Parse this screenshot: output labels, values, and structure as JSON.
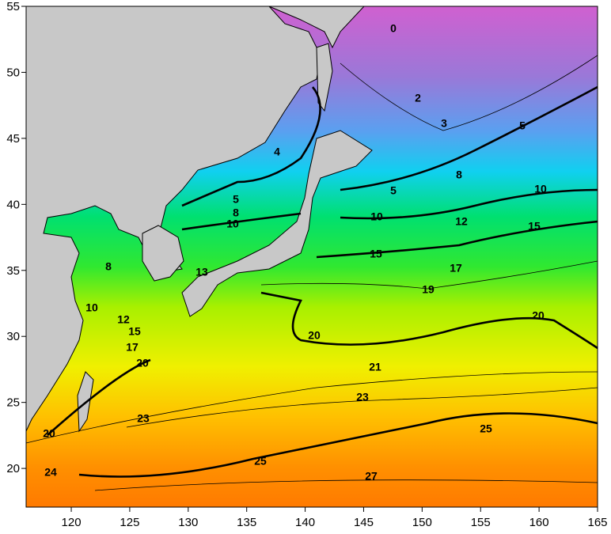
{
  "map": {
    "xlim": [
      116.14,
      165
    ],
    "ylim": [
      17.07,
      55
    ],
    "xticks": [
      120,
      125,
      130,
      135,
      140,
      145,
      150,
      155,
      160,
      165
    ],
    "yticks": [
      20,
      25,
      30,
      35,
      40,
      45,
      50,
      55
    ],
    "contour_labels": [
      0,
      2,
      3,
      4,
      5,
      5,
      5,
      8,
      8,
      10,
      10,
      10,
      12,
      15,
      15,
      17,
      13,
      8,
      19,
      10,
      12,
      15,
      17,
      20,
      20,
      20,
      21,
      23,
      23,
      25,
      25,
      20,
      24,
      27
    ]
  }
}
